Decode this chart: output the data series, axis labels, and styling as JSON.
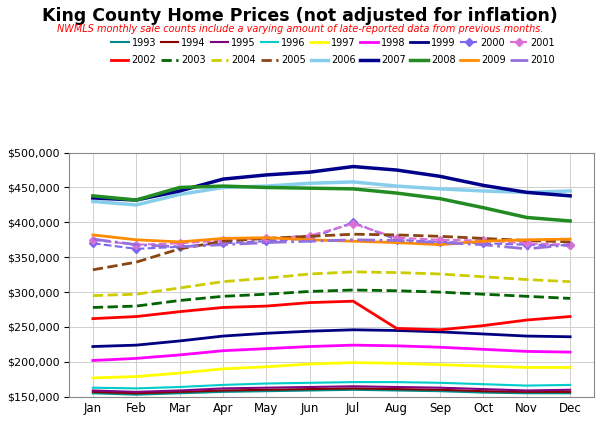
{
  "title": "King County Home Prices (not adjusted for inflation)",
  "subtitle": "NWMLS monthly sale counts include a varying amount of late-reported data from previous months.",
  "months": [
    "Jan",
    "Feb",
    "Mar",
    "Apr",
    "May",
    "Jun",
    "Jul",
    "Aug",
    "Sep",
    "Oct",
    "Nov",
    "Dec"
  ],
  "series": [
    {
      "label": "1993",
      "color": "#008B8B",
      "linestyle": "-",
      "linewidth": 1.5,
      "marker": null,
      "data": [
        155000,
        153000,
        155000,
        157000,
        158000,
        159000,
        160000,
        159000,
        158000,
        156000,
        155000,
        155000
      ]
    },
    {
      "label": "1994",
      "color": "#8B0000",
      "linestyle": "-",
      "linewidth": 1.5,
      "marker": null,
      "data": [
        157000,
        155000,
        157000,
        159000,
        160000,
        161000,
        162000,
        161000,
        160000,
        158000,
        157000,
        157000
      ]
    },
    {
      "label": "1995",
      "color": "#800080",
      "linestyle": "-",
      "linewidth": 1.5,
      "marker": null,
      "data": [
        159000,
        157000,
        159000,
        162000,
        163000,
        164000,
        165000,
        164000,
        163000,
        161000,
        159000,
        160000
      ]
    },
    {
      "label": "1996",
      "color": "#00CCCC",
      "linestyle": "-",
      "linewidth": 1.5,
      "marker": null,
      "data": [
        163000,
        162000,
        164000,
        167000,
        169000,
        170000,
        171000,
        171000,
        170000,
        168000,
        166000,
        167000
      ]
    },
    {
      "label": "1997",
      "color": "#FFFF00",
      "linestyle": "-",
      "linewidth": 2.0,
      "marker": null,
      "data": [
        177000,
        179000,
        184000,
        190000,
        193000,
        197000,
        199000,
        198000,
        196000,
        194000,
        192000,
        192000
      ]
    },
    {
      "label": "1998",
      "color": "#FF00FF",
      "linestyle": "-",
      "linewidth": 2.0,
      "marker": null,
      "data": [
        202000,
        205000,
        210000,
        216000,
        219000,
        222000,
        224000,
        223000,
        221000,
        218000,
        215000,
        214000
      ]
    },
    {
      "label": "1999",
      "color": "#000080",
      "linestyle": "-",
      "linewidth": 2.0,
      "marker": null,
      "data": [
        222000,
        224000,
        230000,
        237000,
        241000,
        244000,
        246000,
        245000,
        243000,
        240000,
        237000,
        236000
      ]
    },
    {
      "label": "2000",
      "color": "#7B68EE",
      "linestyle": "--",
      "linewidth": 1.5,
      "marker": "D",
      "data": [
        370000,
        362000,
        365000,
        370000,
        373000,
        377000,
        400000,
        375000,
        372000,
        370000,
        368000,
        367000
      ]
    },
    {
      "label": "2001",
      "color": "#DA70D6",
      "linestyle": "--",
      "linewidth": 1.5,
      "marker": "D",
      "data": [
        375000,
        368000,
        370000,
        374000,
        377000,
        381000,
        398000,
        378000,
        375000,
        374000,
        370000,
        368000
      ]
    },
    {
      "label": "2002",
      "color": "#FF0000",
      "linestyle": "-",
      "linewidth": 2.0,
      "marker": null,
      "data": [
        262000,
        265000,
        272000,
        278000,
        280000,
        285000,
        287000,
        248000,
        246000,
        252000,
        260000,
        265000
      ]
    },
    {
      "label": "2003",
      "color": "#006400",
      "linestyle": "--",
      "linewidth": 2.0,
      "marker": null,
      "data": [
        278000,
        280000,
        288000,
        294000,
        297000,
        301000,
        303000,
        302000,
        300000,
        297000,
        294000,
        291000
      ]
    },
    {
      "label": "2004",
      "color": "#CCCC00",
      "linestyle": "--",
      "linewidth": 2.0,
      "marker": null,
      "data": [
        295000,
        297000,
        306000,
        315000,
        320000,
        326000,
        329000,
        328000,
        326000,
        322000,
        318000,
        315000
      ]
    },
    {
      "label": "2005",
      "color": "#8B4513",
      "linestyle": "--",
      "linewidth": 2.0,
      "marker": null,
      "data": [
        332000,
        343000,
        362000,
        373000,
        377000,
        380000,
        383000,
        382000,
        380000,
        377000,
        374000,
        372000
      ]
    },
    {
      "label": "2006",
      "color": "#87CEEB",
      "linestyle": "-",
      "linewidth": 2.5,
      "marker": null,
      "data": [
        430000,
        425000,
        440000,
        450000,
        452000,
        456000,
        458000,
        452000,
        448000,
        445000,
        443000,
        445000
      ]
    },
    {
      "label": "2007",
      "color": "#00008B",
      "linestyle": "-",
      "linewidth": 2.5,
      "marker": null,
      "data": [
        435000,
        432000,
        445000,
        462000,
        468000,
        472000,
        480000,
        475000,
        466000,
        453000,
        443000,
        438000
      ]
    },
    {
      "label": "2008",
      "color": "#228B22",
      "linestyle": "-",
      "linewidth": 2.5,
      "marker": null,
      "data": [
        438000,
        432000,
        450000,
        452000,
        450000,
        449000,
        448000,
        442000,
        434000,
        421000,
        407000,
        402000
      ]
    },
    {
      "label": "2009",
      "color": "#FF8C00",
      "linestyle": "-",
      "linewidth": 2.0,
      "marker": null,
      "data": [
        382000,
        375000,
        372000,
        377000,
        378000,
        375000,
        373000,
        371000,
        368000,
        373000,
        375000,
        376000
      ]
    },
    {
      "label": "2010",
      "color": "#9370DB",
      "linestyle": "-.",
      "linewidth": 2.0,
      "marker": null,
      "data": [
        376000,
        368000,
        365000,
        368000,
        371000,
        373000,
        375000,
        374000,
        371000,
        368000,
        362000,
        368000
      ]
    }
  ],
  "ylim": [
    150000,
    500000
  ],
  "yticks": [
    150000,
    200000,
    250000,
    300000,
    350000,
    400000,
    450000,
    500000
  ],
  "background": "#FFFFFF",
  "grid_color": "#C8C8C8",
  "row1_labels": [
    "1993",
    "1994",
    "1995",
    "1996",
    "1997",
    "1998",
    "1999",
    "2000",
    "2001"
  ],
  "row2_labels": [
    "2002",
    "2003",
    "2004",
    "2005",
    "2006",
    "2007",
    "2008",
    "2009",
    "2010"
  ]
}
